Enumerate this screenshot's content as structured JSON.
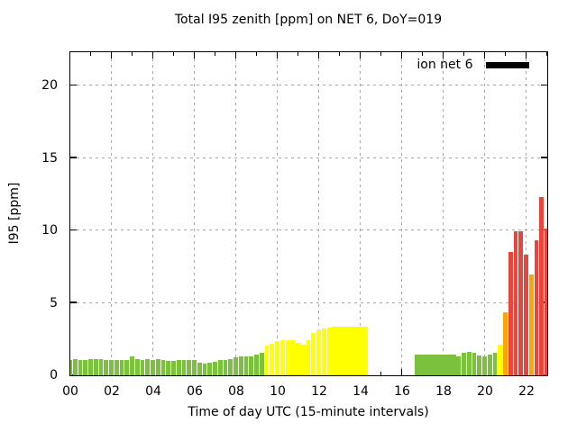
{
  "chart_data": {
    "type": "bar",
    "title": "Total I95 zenith [ppm] on NET 6, DoY=019",
    "xlabel": "Time of day UTC (15-minute intervals)",
    "ylabel": "I95 [ppm]",
    "legend_label": "ion net 6",
    "legend_swatch_color": "#000000",
    "interval_minutes": 15,
    "x_range_hours": [
      0,
      23
    ],
    "ylim": [
      0,
      22.3
    ],
    "y_major_ticks": [
      0,
      5,
      10,
      15,
      20
    ],
    "x_major_tick_hours": [
      0,
      2,
      4,
      6,
      8,
      10,
      12,
      14,
      16,
      18,
      20,
      22
    ],
    "x_tick_labels": [
      "00",
      "02",
      "04",
      "06",
      "08",
      "10",
      "12",
      "14",
      "16",
      "18",
      "20",
      "22"
    ],
    "x_minor_tick_hours": [
      1,
      3,
      5,
      7,
      9,
      11,
      13,
      15,
      17,
      19,
      21,
      23
    ],
    "grid": {
      "vertical_hours": [
        2,
        4,
        6,
        8,
        10,
        12,
        14,
        16,
        18,
        20,
        22
      ],
      "horizontal_values": [
        5,
        10,
        15,
        20
      ],
      "color": "#a8a8a8"
    },
    "colors": {
      "g": "#7cc13e",
      "y": "#ffff00",
      "o": "#ffa500",
      "r": "#e8453c"
    },
    "color_names": {
      "g": "green",
      "y": "yellow",
      "o": "orange",
      "r": "red"
    },
    "data_gap": {
      "from": "14:30",
      "to": "16:30"
    },
    "bars": [
      [
        "00:00",
        1.05,
        "g"
      ],
      [
        "00:15",
        1.1,
        "g"
      ],
      [
        "00:30",
        1.0,
        "g"
      ],
      [
        "00:45",
        1.05,
        "g"
      ],
      [
        "01:00",
        1.1,
        "g"
      ],
      [
        "01:15",
        1.1,
        "g"
      ],
      [
        "01:30",
        1.1,
        "g"
      ],
      [
        "01:45",
        1.05,
        "g"
      ],
      [
        "02:00",
        1.0,
        "g"
      ],
      [
        "02:15",
        1.05,
        "g"
      ],
      [
        "02:30",
        1.0,
        "g"
      ],
      [
        "02:45",
        1.05,
        "g"
      ],
      [
        "03:00",
        1.3,
        "g"
      ],
      [
        "03:15",
        1.1,
        "g"
      ],
      [
        "03:30",
        1.05,
        "g"
      ],
      [
        "03:45",
        1.1,
        "g"
      ],
      [
        "04:00",
        1.05,
        "g"
      ],
      [
        "04:15",
        1.1,
        "g"
      ],
      [
        "04:30",
        1.05,
        "g"
      ],
      [
        "04:45",
        0.95,
        "g"
      ],
      [
        "05:00",
        0.95,
        "g"
      ],
      [
        "05:15",
        1.0,
        "g"
      ],
      [
        "05:30",
        1.0,
        "g"
      ],
      [
        "05:45",
        1.0,
        "g"
      ],
      [
        "06:00",
        1.05,
        "g"
      ],
      [
        "06:15",
        0.85,
        "g"
      ],
      [
        "06:30",
        0.8,
        "g"
      ],
      [
        "06:45",
        0.85,
        "g"
      ],
      [
        "07:00",
        0.9,
        "g"
      ],
      [
        "07:15",
        1.0,
        "g"
      ],
      [
        "07:30",
        1.0,
        "g"
      ],
      [
        "07:45",
        1.1,
        "g"
      ],
      [
        "08:00",
        1.2,
        "g"
      ],
      [
        "08:15",
        1.25,
        "g"
      ],
      [
        "08:30",
        1.25,
        "g"
      ],
      [
        "08:45",
        1.25,
        "g"
      ],
      [
        "09:00",
        1.4,
        "g"
      ],
      [
        "09:15",
        1.5,
        "g"
      ],
      [
        "09:30",
        2.0,
        "y"
      ],
      [
        "09:45",
        2.15,
        "y"
      ],
      [
        "10:00",
        2.3,
        "y"
      ],
      [
        "10:15",
        2.4,
        "y"
      ],
      [
        "10:30",
        2.4,
        "y"
      ],
      [
        "10:45",
        2.4,
        "y"
      ],
      [
        "11:00",
        2.2,
        "y"
      ],
      [
        "11:15",
        2.1,
        "y"
      ],
      [
        "11:30",
        2.4,
        "y"
      ],
      [
        "11:45",
        2.9,
        "y"
      ],
      [
        "12:00",
        3.1,
        "y"
      ],
      [
        "12:15",
        3.2,
        "y"
      ],
      [
        "12:30",
        3.25,
        "y"
      ],
      [
        "12:45",
        3.3,
        "y",
        1
      ],
      [
        "13:00",
        3.3,
        "y",
        1
      ],
      [
        "13:15",
        3.3,
        "y",
        1
      ],
      [
        "13:30",
        3.3,
        "y",
        1
      ],
      [
        "13:45",
        3.3,
        "y",
        1
      ],
      [
        "14:00",
        3.3,
        "y",
        1
      ],
      [
        "14:15",
        3.3,
        "y",
        1
      ],
      [
        "16:45",
        1.4,
        "g",
        1
      ],
      [
        "17:00",
        1.4,
        "g",
        1
      ],
      [
        "17:15",
        1.4,
        "g",
        1
      ],
      [
        "17:30",
        1.4,
        "g",
        1
      ],
      [
        "17:45",
        1.4,
        "g",
        1
      ],
      [
        "18:00",
        1.4,
        "g",
        1
      ],
      [
        "18:15",
        1.4,
        "g",
        1
      ],
      [
        "18:30",
        1.4,
        "g",
        1
      ],
      [
        "18:45",
        1.3,
        "g"
      ],
      [
        "19:00",
        1.5,
        "g"
      ],
      [
        "19:15",
        1.6,
        "g"
      ],
      [
        "19:30",
        1.5,
        "g"
      ],
      [
        "19:45",
        1.35,
        "g"
      ],
      [
        "20:00",
        1.25,
        "g"
      ],
      [
        "20:15",
        1.4,
        "g"
      ],
      [
        "20:30",
        1.5,
        "g"
      ],
      [
        "20:45",
        2.1,
        "y"
      ],
      [
        "21:00",
        4.3,
        "o"
      ],
      [
        "21:15",
        8.5,
        "r"
      ],
      [
        "21:30",
        9.9,
        "r"
      ],
      [
        "21:45",
        9.9,
        "r"
      ],
      [
        "22:00",
        8.3,
        "r"
      ],
      [
        "22:15",
        6.9,
        "o"
      ],
      [
        "22:30",
        9.3,
        "r"
      ],
      [
        "22:45",
        12.3,
        "r"
      ],
      [
        "23:00",
        10.1,
        "r"
      ]
    ]
  }
}
